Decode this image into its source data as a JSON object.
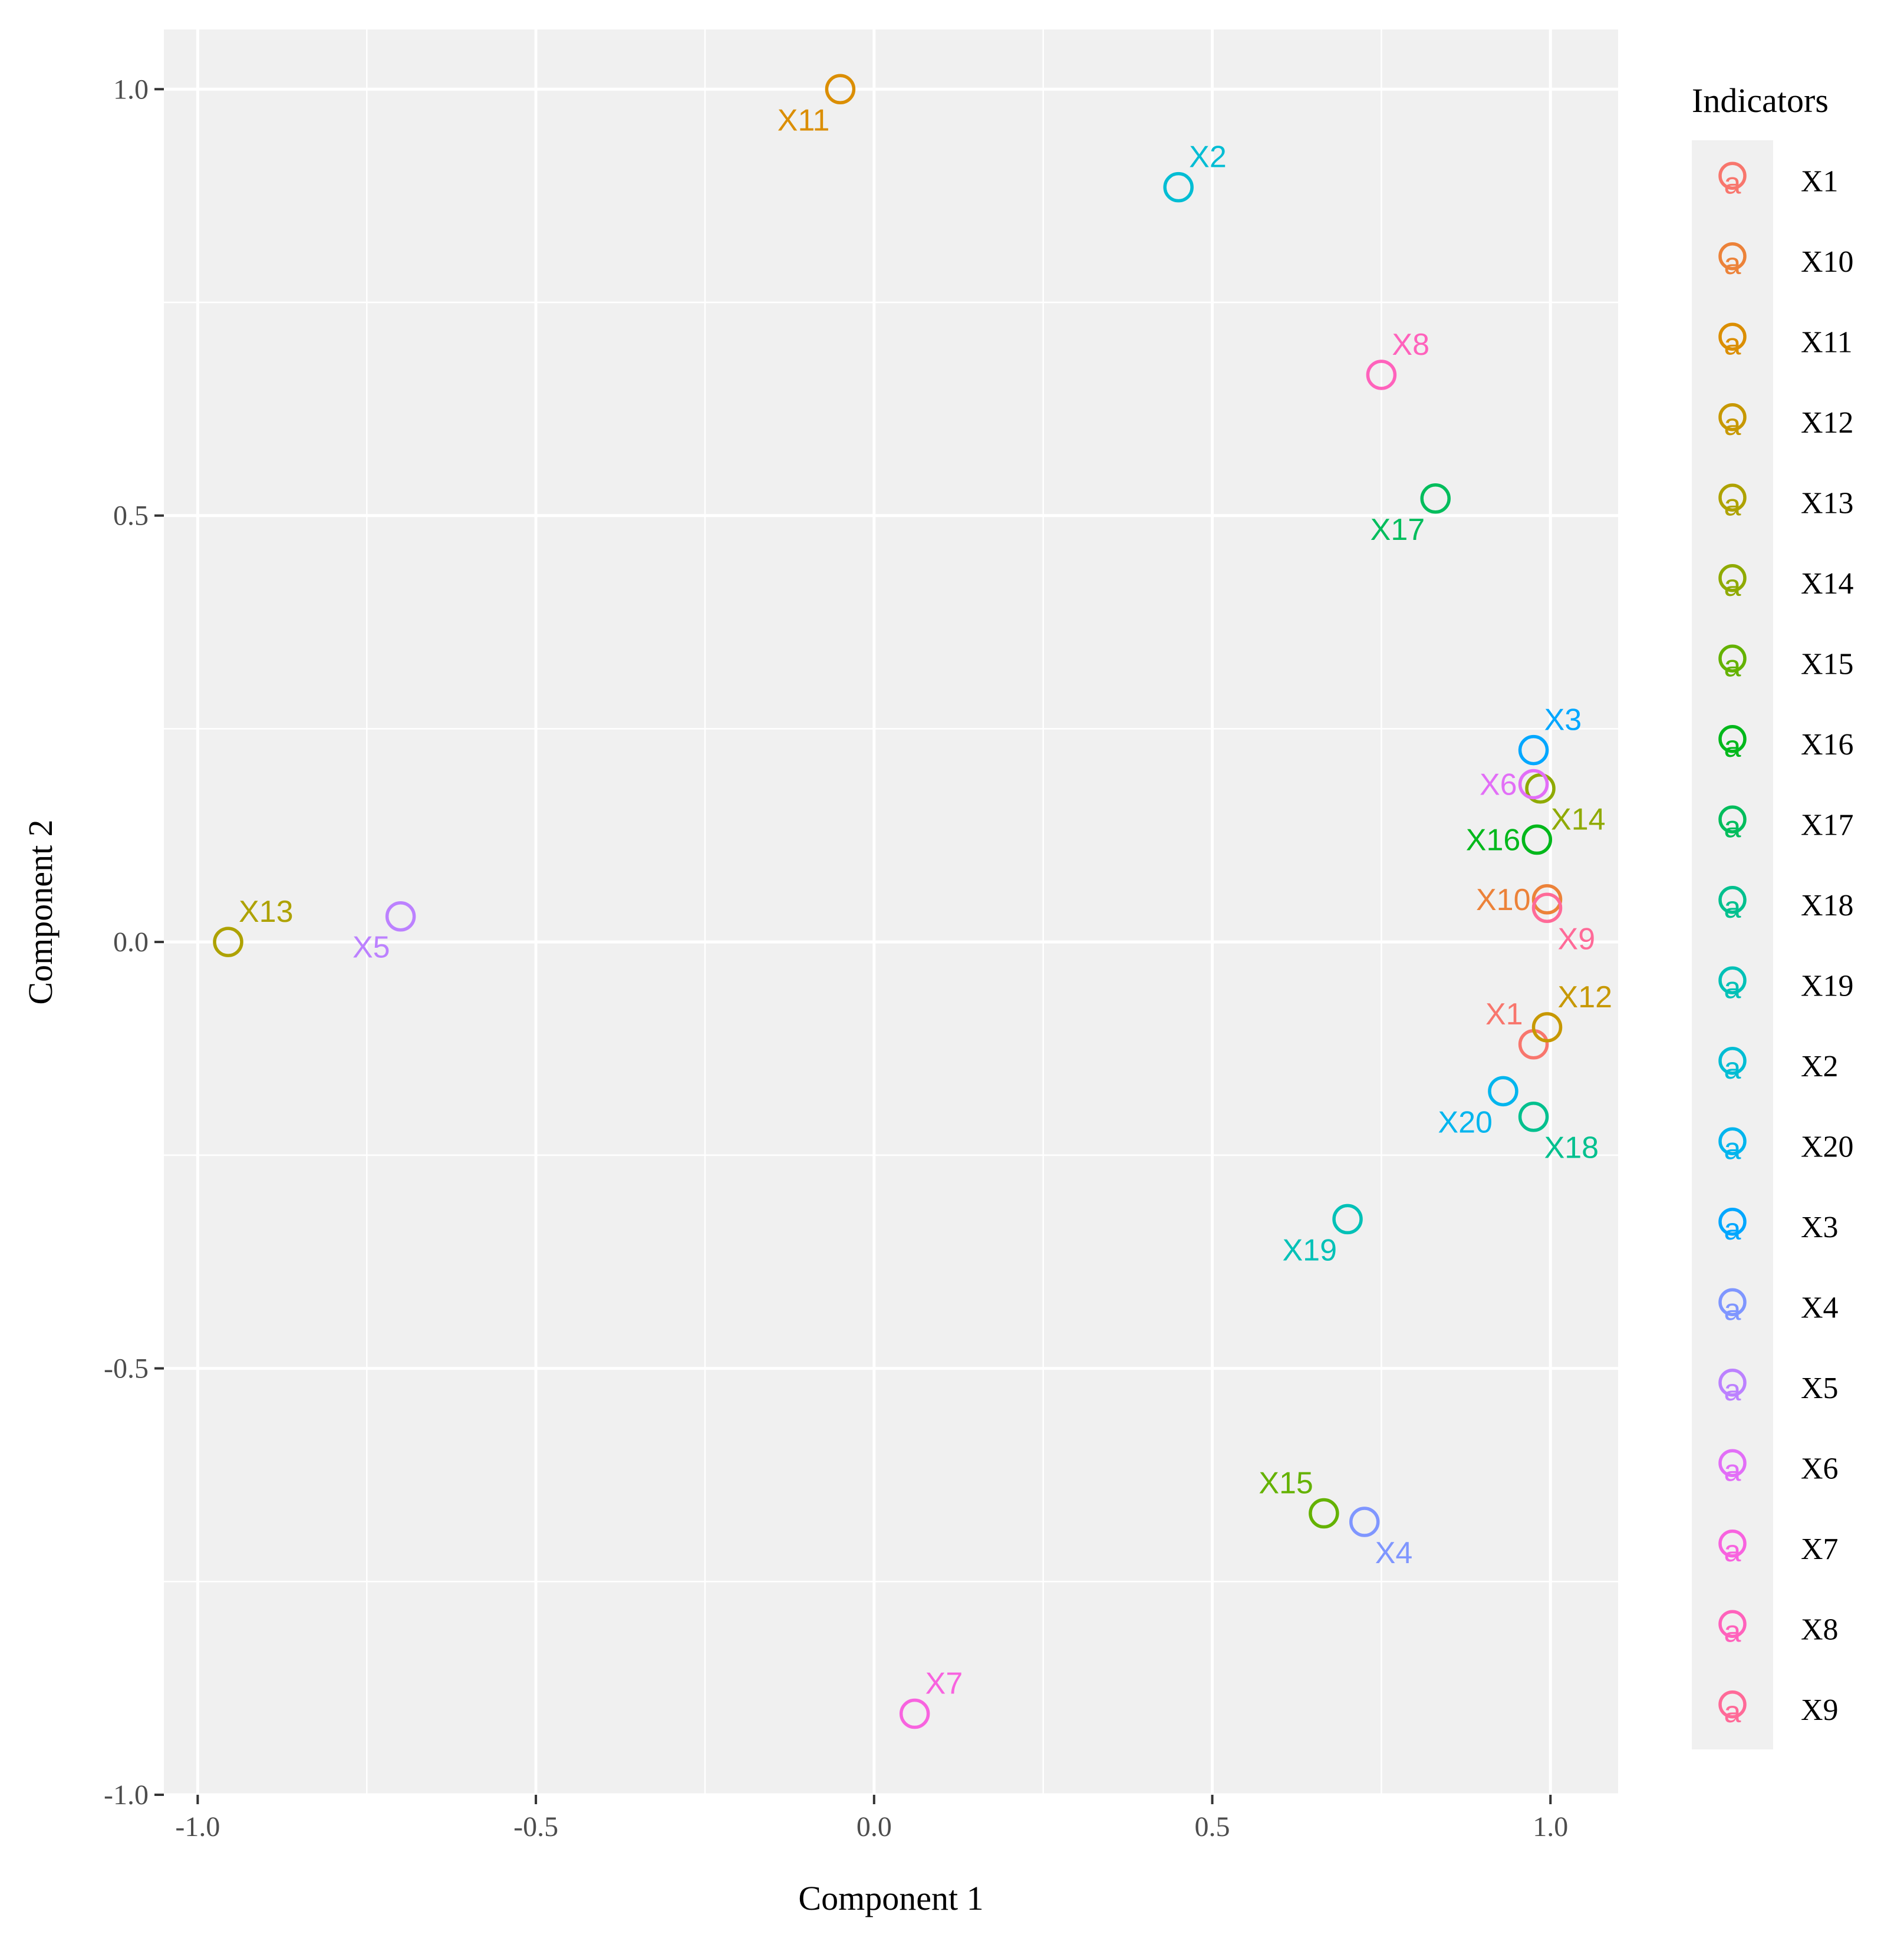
{
  "chart_data": {
    "type": "scatter",
    "xlabel": "Component 1",
    "ylabel": "Component 2",
    "xlim": [
      -1.05,
      1.1
    ],
    "ylim": [
      -1.0,
      1.07
    ],
    "grid": true,
    "x_ticks": [
      -1.0,
      -0.5,
      0.0,
      0.5,
      1.0
    ],
    "x_tick_labels": [
      "-1.0",
      "-0.5",
      "0.0",
      "0.5",
      "1.0"
    ],
    "y_ticks": [
      -1.0,
      -0.5,
      0.0,
      0.5,
      1.0
    ],
    "y_tick_labels": [
      "-1.0",
      "-0.5",
      "0.0",
      "0.5",
      "1.0"
    ],
    "legend": {
      "title": "Indicators",
      "placement": "right",
      "key_glyph": "a"
    },
    "points": [
      {
        "name": "X1",
        "x": 0.975,
        "y": -0.12,
        "color": "#F8766D",
        "label_pos": "upper-left"
      },
      {
        "name": "X10",
        "x": 0.995,
        "y": 0.05,
        "color": "#EC8239",
        "label_pos": "left"
      },
      {
        "name": "X11",
        "x": -0.05,
        "y": 1.0,
        "color": "#DB8E00",
        "label_pos": "lower-left"
      },
      {
        "name": "X12",
        "x": 0.995,
        "y": -0.1,
        "color": "#C79800",
        "label_pos": "upper-right"
      },
      {
        "name": "X13",
        "x": -0.955,
        "y": 0.0,
        "color": "#AEA200",
        "label_pos": "upper-right"
      },
      {
        "name": "X14",
        "x": 0.985,
        "y": 0.18,
        "color": "#8FAA00",
        "label_pos": "lower-right"
      },
      {
        "name": "X15",
        "x": 0.665,
        "y": -0.67,
        "color": "#64B200",
        "label_pos": "upper-left"
      },
      {
        "name": "X16",
        "x": 0.98,
        "y": 0.12,
        "color": "#00B81B",
        "label_pos": "left"
      },
      {
        "name": "X17",
        "x": 0.83,
        "y": 0.52,
        "color": "#00BD5C",
        "label_pos": "lower-left"
      },
      {
        "name": "X18",
        "x": 0.975,
        "y": -0.205,
        "color": "#00C08E",
        "label_pos": "lower-right"
      },
      {
        "name": "X19",
        "x": 0.7,
        "y": -0.325,
        "color": "#00C1B7",
        "label_pos": "lower-left"
      },
      {
        "name": "X2",
        "x": 0.45,
        "y": 0.885,
        "color": "#00BDD4",
        "label_pos": "upper-right"
      },
      {
        "name": "X20",
        "x": 0.93,
        "y": -0.175,
        "color": "#00B5EE",
        "label_pos": "lower-left"
      },
      {
        "name": "X3",
        "x": 0.975,
        "y": 0.225,
        "color": "#00A7FF",
        "label_pos": "upper-right"
      },
      {
        "name": "X4",
        "x": 0.725,
        "y": -0.68,
        "color": "#7F96FF",
        "label_pos": "lower-right"
      },
      {
        "name": "X5",
        "x": -0.7,
        "y": 0.03,
        "color": "#BC81FF",
        "label_pos": "lower-left"
      },
      {
        "name": "X6",
        "x": 0.975,
        "y": 0.185,
        "color": "#E26EF7",
        "label_pos": "left"
      },
      {
        "name": "X7",
        "x": 0.06,
        "y": -0.905,
        "color": "#F863DF",
        "label_pos": "upper-right"
      },
      {
        "name": "X8",
        "x": 0.75,
        "y": 0.665,
        "color": "#FF62BC",
        "label_pos": "upper-right"
      },
      {
        "name": "X9",
        "x": 0.995,
        "y": 0.04,
        "color": "#FF6A98",
        "label_pos": "lower-right"
      }
    ]
  }
}
